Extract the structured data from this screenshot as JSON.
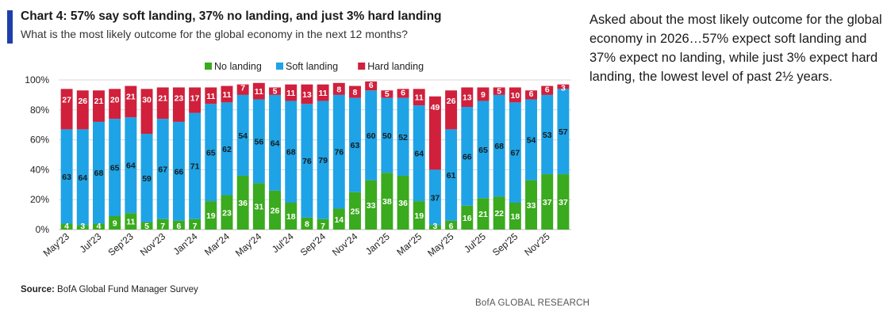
{
  "header": {
    "title": "Chart 4: 57% say soft landing, 37% no landing, and just 3% hard landing",
    "subtitle": "What is the most likely outcome for the global economy in the next 12 months?"
  },
  "footer": {
    "source_label": "Source:",
    "source_text": "BofA Global Fund Manager Survey",
    "brand": "BofA GLOBAL RESEARCH"
  },
  "side_note": "Asked about the most likely outcome for the global economy in 2026…57% expect soft landing and 37% expect no landing, while just 3% expect hard landing, the lowest level of past 2½ years.",
  "colors": {
    "no_landing": "#3aaa1e",
    "soft_landing": "#1ea3e6",
    "hard_landing": "#d0203c"
  },
  "chart_data": {
    "type": "bar",
    "stacked": true,
    "title": "Chart 4: 57% say soft landing, 37% no landing, and just 3% hard landing",
    "subtitle": "What is the most likely outcome for the global economy in the next 12 months?",
    "xlabel": "",
    "ylabel": "",
    "ylim": [
      0,
      100
    ],
    "yticks": [
      "0%",
      "20%",
      "40%",
      "60%",
      "80%",
      "100%"
    ],
    "legend_position": "top-center",
    "categories": [
      "May'23",
      "Jun'23",
      "Jul'23",
      "Aug'23",
      "Sep'23",
      "Oct'23",
      "Nov'23",
      "Dec'23",
      "Jan'24",
      "Feb'24",
      "Mar'24",
      "Apr'24",
      "May'24",
      "Jun'24",
      "Jul'24",
      "Aug'24",
      "Sep'24",
      "Oct'24",
      "Nov'24",
      "Dec'24",
      "Jan'25",
      "Feb'25",
      "Mar'25",
      "Apr'25",
      "May'25",
      "Jun'25",
      "Jul'25",
      "Aug'25",
      "Sep'25",
      "Oct'25",
      "Nov'25",
      "Dec'25"
    ],
    "xtick_labels": [
      "May'23",
      "",
      "Jul'23",
      "",
      "Sep'23",
      "",
      "Nov'23",
      "",
      "Jan'24",
      "",
      "Mar'24",
      "",
      "May'24",
      "",
      "Jul'24",
      "",
      "Sep'24",
      "",
      "Nov'24",
      "",
      "Jan'25",
      "",
      "Mar'25",
      "",
      "May'25",
      "",
      "Jul'25",
      "",
      "Sep'25",
      "",
      "Nov'25",
      ""
    ],
    "series": [
      {
        "name": "No landing",
        "values": [
          4,
          3,
          4,
          9,
          11,
          5,
          7,
          6,
          7,
          19,
          23,
          36,
          31,
          26,
          18,
          8,
          7,
          14,
          25,
          33,
          38,
          36,
          19,
          3,
          6,
          16,
          21,
          22,
          18,
          33,
          37,
          37
        ]
      },
      {
        "name": "Soft landing",
        "values": [
          63,
          64,
          68,
          65,
          64,
          59,
          67,
          66,
          71,
          65,
          62,
          54,
          56,
          64,
          68,
          76,
          79,
          76,
          63,
          60,
          50,
          52,
          64,
          37,
          61,
          66,
          65,
          68,
          67,
          54,
          53,
          57
        ]
      },
      {
        "name": "Hard landing",
        "values": [
          27,
          26,
          21,
          20,
          21,
          30,
          21,
          23,
          17,
          11,
          11,
          7,
          11,
          5,
          11,
          13,
          11,
          8,
          8,
          6,
          5,
          6,
          11,
          49,
          26,
          13,
          9,
          5,
          10,
          6,
          6,
          3
        ]
      }
    ]
  }
}
